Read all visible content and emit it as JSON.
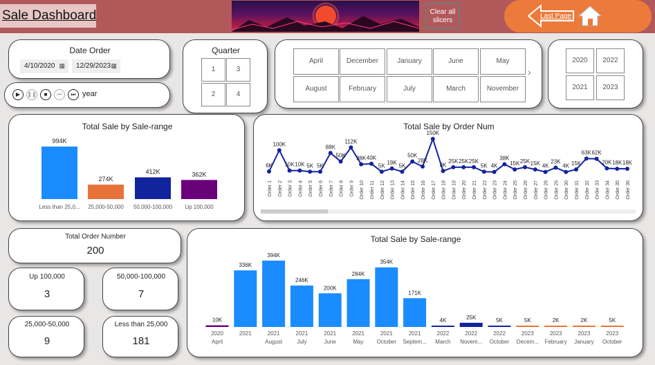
{
  "header": {
    "title": "Sale Dashboard",
    "clear_slicers": "Clear all slicers",
    "last_page": "Last Page"
  },
  "date_order": {
    "title": "Date Order",
    "start": "4/10/2020",
    "end": "12/29/2023"
  },
  "play_axis": {
    "label": "year"
  },
  "quarter": {
    "title": "Quarter",
    "options": [
      "1",
      "3",
      "2",
      "4"
    ]
  },
  "months": [
    "April",
    "December",
    "January",
    "June",
    "May",
    "August",
    "February",
    "July",
    "March",
    "November"
  ],
  "years": [
    "2020",
    "2022",
    "2021",
    "2023"
  ],
  "kpis": {
    "total_order": {
      "label": "Total Order Number",
      "value": "200"
    },
    "up100k": {
      "label": "Up 100,000",
      "value": "3"
    },
    "r50_100": {
      "label": "50,000-100,000",
      "value": "7"
    },
    "r25_50": {
      "label": "25,000-50,000",
      "value": "9"
    },
    "lt25": {
      "label": "Less than 25,000",
      "value": "181"
    }
  },
  "chart_data": [
    {
      "type": "bar",
      "title": "Total Sale by Sale-range",
      "categories": [
        "Less than 25,0...",
        "25,000-50,000",
        "50,000-100,000",
        "Up 100,000"
      ],
      "values": [
        994,
        274,
        412,
        362
      ],
      "labels": [
        "994K",
        "274K",
        "412K",
        "362K"
      ],
      "colors": [
        "#1a8cff",
        "#e8733a",
        "#12239e",
        "#6b007b"
      ]
    },
    {
      "type": "line",
      "title": "Total Sale by Order Num",
      "categories": [
        "Order 1",
        "Order 2",
        "Order 3",
        "Order 4",
        "Order 5",
        "Order 6",
        "Order 7",
        "Order 8",
        "Order 9",
        "Order 10",
        "Order 11",
        "Order 12",
        "Order 13",
        "Order 14",
        "Order 15",
        "Order 16",
        "Order 17",
        "Order 18",
        "Order 19",
        "Order 20",
        "Order 21",
        "Order 22",
        "Order 23",
        "Order 24",
        "Order 25",
        "Order 26",
        "Order 27",
        "Order 28",
        "Order 29",
        "Order 30",
        "Order 31",
        "Order 32",
        "Order 33",
        "Order 34",
        "Order 35",
        "Order 36"
      ],
      "values": [
        6,
        100,
        10,
        10,
        5,
        5,
        88,
        50,
        112,
        38,
        40,
        5,
        19,
        5,
        50,
        28,
        150,
        8,
        25,
        25,
        25,
        5,
        4,
        38,
        15,
        25,
        15,
        4,
        23,
        4,
        15,
        63,
        62,
        20,
        18,
        18
      ],
      "labels": [
        "6K",
        "100K",
        "10K",
        "10K",
        "5K",
        "5K",
        "88K",
        "50K",
        "112K",
        "38K",
        "40K",
        "5K",
        "19K",
        "5K",
        "50K",
        "28K",
        "150K",
        "8K",
        "25K",
        "25K",
        "25K",
        "5K",
        "4K",
        "38K",
        "15K",
        "25K",
        "15K",
        "4K",
        "23K",
        "4K",
        "15K",
        "63K",
        "62K",
        "20K",
        "18K",
        "18K"
      ],
      "color": "#12239e"
    },
    {
      "type": "bar",
      "title": "Total Sale by Sale-range",
      "categories": [
        [
          "2020",
          "April"
        ],
        [
          "2021",
          ""
        ],
        [
          "2021",
          "August"
        ],
        [
          "2021",
          "July"
        ],
        [
          "2021",
          "June"
        ],
        [
          "2021",
          "May"
        ],
        [
          "2021",
          "October"
        ],
        [
          "2021",
          "Septem..."
        ],
        [
          "2022",
          "March"
        ],
        [
          "2022",
          "Novem..."
        ],
        [
          "2022",
          "October"
        ],
        [
          "2023",
          "Decem..."
        ],
        [
          "2023",
          "February"
        ],
        [
          "2023",
          "January"
        ],
        [
          "2023",
          "October"
        ]
      ],
      "values": [
        10,
        336,
        394,
        246,
        200,
        284,
        354,
        171,
        4,
        25,
        5,
        5,
        2,
        2,
        5
      ],
      "labels": [
        "10K",
        "336K",
        "394K",
        "246K",
        "200K",
        "284K",
        "354K",
        "171K",
        "4K",
        "25K",
        "5K",
        "5K",
        "2K",
        "2K",
        "5K"
      ],
      "colors": [
        "#6b007b",
        "#1a8cff",
        "#1a8cff",
        "#1a8cff",
        "#1a8cff",
        "#1a8cff",
        "#1a8cff",
        "#1a8cff",
        "#12239e",
        "#12239e",
        "#12239e",
        "#e8733a",
        "#e8733a",
        "#e8733a",
        "#e8733a"
      ]
    }
  ]
}
